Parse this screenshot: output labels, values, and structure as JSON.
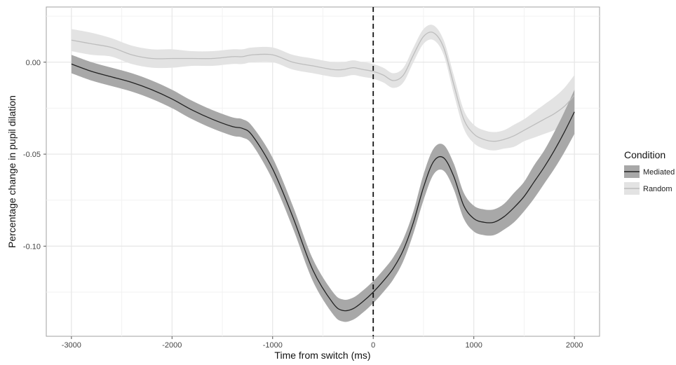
{
  "chart_data": {
    "type": "line",
    "title": "",
    "xlabel": "Time from switch (ms)",
    "ylabel": "Percentage change in pupil dilation",
    "xlim": [
      -3250,
      2250
    ],
    "ylim": [
      -0.149,
      0.03
    ],
    "x_ticks": [
      -3000,
      -2000,
      -1000,
      0,
      1000,
      2000
    ],
    "x_tick_labels": [
      "-3000",
      "-2000",
      "-1000",
      "0",
      "1000",
      "2000"
    ],
    "y_ticks": [
      0.0,
      -0.05,
      -0.1
    ],
    "y_tick_labels": [
      "0.00",
      "-0.05",
      "-0.10"
    ],
    "vline_x": 0,
    "grid": true,
    "legend": {
      "title": "Condition",
      "position": "right",
      "entries": [
        "Mediated",
        "Random"
      ]
    },
    "x": [
      -3000,
      -2800,
      -2600,
      -2400,
      -2200,
      -2000,
      -1800,
      -1600,
      -1400,
      -1300,
      -1200,
      -1000,
      -800,
      -600,
      -400,
      -300,
      -200,
      -100,
      0,
      100,
      200,
      300,
      400,
      500,
      600,
      700,
      800,
      900,
      1000,
      1100,
      1200,
      1300,
      1400,
      1500,
      1600,
      1700,
      1800,
      1900,
      2000
    ],
    "series": [
      {
        "name": "Mediated",
        "color": "#222222",
        "band_color": "#a8a8a8",
        "values": [
          -0.001,
          -0.005,
          -0.008,
          -0.011,
          -0.015,
          -0.02,
          -0.026,
          -0.031,
          -0.035,
          -0.036,
          -0.04,
          -0.058,
          -0.084,
          -0.113,
          -0.131,
          -0.135,
          -0.134,
          -0.13,
          -0.125,
          -0.119,
          -0.112,
          -0.102,
          -0.087,
          -0.068,
          -0.054,
          -0.052,
          -0.062,
          -0.078,
          -0.085,
          -0.087,
          -0.087,
          -0.084,
          -0.079,
          -0.073,
          -0.065,
          -0.057,
          -0.048,
          -0.038,
          -0.027
        ],
        "band": [
          0.005,
          0.005,
          0.005,
          0.005,
          0.005,
          0.005,
          0.005,
          0.005,
          0.005,
          0.005,
          0.005,
          0.006,
          0.006,
          0.006,
          0.006,
          0.006,
          0.006,
          0.006,
          0.006,
          0.006,
          0.006,
          0.006,
          0.006,
          0.007,
          0.007,
          0.007,
          0.007,
          0.007,
          0.007,
          0.007,
          0.007,
          0.007,
          0.008,
          0.008,
          0.009,
          0.009,
          0.01,
          0.011,
          0.012
        ]
      },
      {
        "name": "Random",
        "color": "#bdbdbd",
        "band_color": "#e3e3e3",
        "values": [
          0.012,
          0.01,
          0.008,
          0.004,
          0.002,
          0.002,
          0.002,
          0.002,
          0.003,
          0.003,
          0.004,
          0.004,
          0.0,
          -0.002,
          -0.004,
          -0.004,
          -0.003,
          -0.004,
          -0.005,
          -0.007,
          -0.01,
          -0.007,
          0.004,
          0.014,
          0.016,
          0.008,
          -0.012,
          -0.031,
          -0.039,
          -0.042,
          -0.043,
          -0.042,
          -0.04,
          -0.037,
          -0.034,
          -0.031,
          -0.028,
          -0.024,
          -0.018
        ],
        "band": [
          0.006,
          0.006,
          0.005,
          0.005,
          0.005,
          0.005,
          0.004,
          0.004,
          0.004,
          0.004,
          0.004,
          0.004,
          0.004,
          0.004,
          0.004,
          0.004,
          0.004,
          0.004,
          0.004,
          0.004,
          0.004,
          0.004,
          0.004,
          0.004,
          0.004,
          0.004,
          0.005,
          0.005,
          0.005,
          0.005,
          0.005,
          0.005,
          0.006,
          0.006,
          0.007,
          0.008,
          0.009,
          0.01,
          0.011
        ]
      }
    ]
  }
}
